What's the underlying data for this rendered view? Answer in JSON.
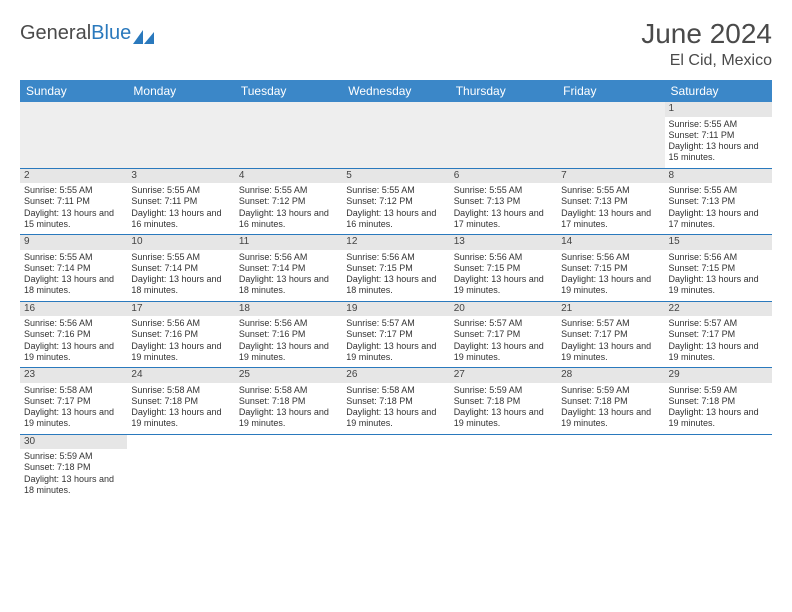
{
  "logo": {
    "text1": "General",
    "text2": "Blue"
  },
  "title": "June 2024",
  "location": "El Cid, Mexico",
  "colors": {
    "header_bg": "#3b87c8",
    "header_text": "#ffffff",
    "row_divider": "#2a79bd",
    "daynum_bg": "#e6e6e6",
    "body_text": "#333333",
    "page_bg": "#ffffff"
  },
  "typography": {
    "title_fontsize": 28,
    "location_fontsize": 16,
    "header_fontsize": 12,
    "cell_fontsize": 9
  },
  "layout": {
    "columns": 7,
    "rows": 6,
    "first_weekday": "Sunday",
    "leading_blanks": 6
  },
  "weekdays": [
    "Sunday",
    "Monday",
    "Tuesday",
    "Wednesday",
    "Thursday",
    "Friday",
    "Saturday"
  ],
  "days": [
    {
      "n": "1",
      "sunrise": "Sunrise: 5:55 AM",
      "sunset": "Sunset: 7:11 PM",
      "daylight": "Daylight: 13 hours and 15 minutes."
    },
    {
      "n": "2",
      "sunrise": "Sunrise: 5:55 AM",
      "sunset": "Sunset: 7:11 PM",
      "daylight": "Daylight: 13 hours and 15 minutes."
    },
    {
      "n": "3",
      "sunrise": "Sunrise: 5:55 AM",
      "sunset": "Sunset: 7:11 PM",
      "daylight": "Daylight: 13 hours and 16 minutes."
    },
    {
      "n": "4",
      "sunrise": "Sunrise: 5:55 AM",
      "sunset": "Sunset: 7:12 PM",
      "daylight": "Daylight: 13 hours and 16 minutes."
    },
    {
      "n": "5",
      "sunrise": "Sunrise: 5:55 AM",
      "sunset": "Sunset: 7:12 PM",
      "daylight": "Daylight: 13 hours and 16 minutes."
    },
    {
      "n": "6",
      "sunrise": "Sunrise: 5:55 AM",
      "sunset": "Sunset: 7:13 PM",
      "daylight": "Daylight: 13 hours and 17 minutes."
    },
    {
      "n": "7",
      "sunrise": "Sunrise: 5:55 AM",
      "sunset": "Sunset: 7:13 PM",
      "daylight": "Daylight: 13 hours and 17 minutes."
    },
    {
      "n": "8",
      "sunrise": "Sunrise: 5:55 AM",
      "sunset": "Sunset: 7:13 PM",
      "daylight": "Daylight: 13 hours and 17 minutes."
    },
    {
      "n": "9",
      "sunrise": "Sunrise: 5:55 AM",
      "sunset": "Sunset: 7:14 PM",
      "daylight": "Daylight: 13 hours and 18 minutes."
    },
    {
      "n": "10",
      "sunrise": "Sunrise: 5:55 AM",
      "sunset": "Sunset: 7:14 PM",
      "daylight": "Daylight: 13 hours and 18 minutes."
    },
    {
      "n": "11",
      "sunrise": "Sunrise: 5:56 AM",
      "sunset": "Sunset: 7:14 PM",
      "daylight": "Daylight: 13 hours and 18 minutes."
    },
    {
      "n": "12",
      "sunrise": "Sunrise: 5:56 AM",
      "sunset": "Sunset: 7:15 PM",
      "daylight": "Daylight: 13 hours and 18 minutes."
    },
    {
      "n": "13",
      "sunrise": "Sunrise: 5:56 AM",
      "sunset": "Sunset: 7:15 PM",
      "daylight": "Daylight: 13 hours and 19 minutes."
    },
    {
      "n": "14",
      "sunrise": "Sunrise: 5:56 AM",
      "sunset": "Sunset: 7:15 PM",
      "daylight": "Daylight: 13 hours and 19 minutes."
    },
    {
      "n": "15",
      "sunrise": "Sunrise: 5:56 AM",
      "sunset": "Sunset: 7:15 PM",
      "daylight": "Daylight: 13 hours and 19 minutes."
    },
    {
      "n": "16",
      "sunrise": "Sunrise: 5:56 AM",
      "sunset": "Sunset: 7:16 PM",
      "daylight": "Daylight: 13 hours and 19 minutes."
    },
    {
      "n": "17",
      "sunrise": "Sunrise: 5:56 AM",
      "sunset": "Sunset: 7:16 PM",
      "daylight": "Daylight: 13 hours and 19 minutes."
    },
    {
      "n": "18",
      "sunrise": "Sunrise: 5:56 AM",
      "sunset": "Sunset: 7:16 PM",
      "daylight": "Daylight: 13 hours and 19 minutes."
    },
    {
      "n": "19",
      "sunrise": "Sunrise: 5:57 AM",
      "sunset": "Sunset: 7:17 PM",
      "daylight": "Daylight: 13 hours and 19 minutes."
    },
    {
      "n": "20",
      "sunrise": "Sunrise: 5:57 AM",
      "sunset": "Sunset: 7:17 PM",
      "daylight": "Daylight: 13 hours and 19 minutes."
    },
    {
      "n": "21",
      "sunrise": "Sunrise: 5:57 AM",
      "sunset": "Sunset: 7:17 PM",
      "daylight": "Daylight: 13 hours and 19 minutes."
    },
    {
      "n": "22",
      "sunrise": "Sunrise: 5:57 AM",
      "sunset": "Sunset: 7:17 PM",
      "daylight": "Daylight: 13 hours and 19 minutes."
    },
    {
      "n": "23",
      "sunrise": "Sunrise: 5:58 AM",
      "sunset": "Sunset: 7:17 PM",
      "daylight": "Daylight: 13 hours and 19 minutes."
    },
    {
      "n": "24",
      "sunrise": "Sunrise: 5:58 AM",
      "sunset": "Sunset: 7:18 PM",
      "daylight": "Daylight: 13 hours and 19 minutes."
    },
    {
      "n": "25",
      "sunrise": "Sunrise: 5:58 AM",
      "sunset": "Sunset: 7:18 PM",
      "daylight": "Daylight: 13 hours and 19 minutes."
    },
    {
      "n": "26",
      "sunrise": "Sunrise: 5:58 AM",
      "sunset": "Sunset: 7:18 PM",
      "daylight": "Daylight: 13 hours and 19 minutes."
    },
    {
      "n": "27",
      "sunrise": "Sunrise: 5:59 AM",
      "sunset": "Sunset: 7:18 PM",
      "daylight": "Daylight: 13 hours and 19 minutes."
    },
    {
      "n": "28",
      "sunrise": "Sunrise: 5:59 AM",
      "sunset": "Sunset: 7:18 PM",
      "daylight": "Daylight: 13 hours and 19 minutes."
    },
    {
      "n": "29",
      "sunrise": "Sunrise: 5:59 AM",
      "sunset": "Sunset: 7:18 PM",
      "daylight": "Daylight: 13 hours and 19 minutes."
    },
    {
      "n": "30",
      "sunrise": "Sunrise: 5:59 AM",
      "sunset": "Sunset: 7:18 PM",
      "daylight": "Daylight: 13 hours and 18 minutes."
    }
  ]
}
